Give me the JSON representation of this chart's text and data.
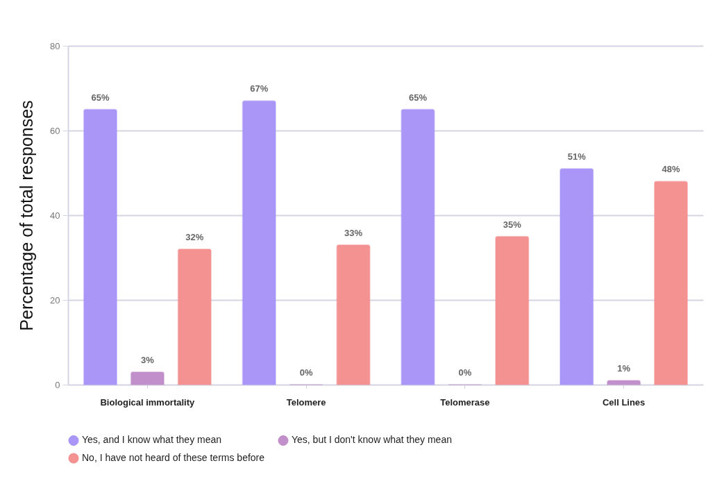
{
  "chart_data": {
    "type": "bar",
    "ylabel": "Percentage of total responses",
    "categories": [
      "Biological immortality",
      "Telomere",
      "Telomerase",
      "Cell Lines"
    ],
    "series": [
      {
        "name": "Yes, and I know what they mean",
        "color": "#a996f7",
        "values": [
          65,
          67,
          65,
          51
        ],
        "value_labels": [
          "65%",
          "67%",
          "65%",
          "51%"
        ]
      },
      {
        "name": "Yes, but I don't know what they mean",
        "color": "#c18fc9",
        "values": [
          3,
          0,
          0,
          1
        ],
        "value_labels": [
          "3%",
          "0%",
          "0%",
          "1%"
        ]
      },
      {
        "name": "No, I have not heard of these terms before",
        "color": "#f49191",
        "values": [
          32,
          33,
          35,
          48
        ],
        "value_labels": [
          "32%",
          "33%",
          "35%",
          "48%"
        ]
      }
    ],
    "ylim": [
      0,
      80
    ],
    "yticks": [
      0,
      20,
      40,
      60,
      80
    ],
    "grid": "y",
    "legend": "bottom"
  }
}
